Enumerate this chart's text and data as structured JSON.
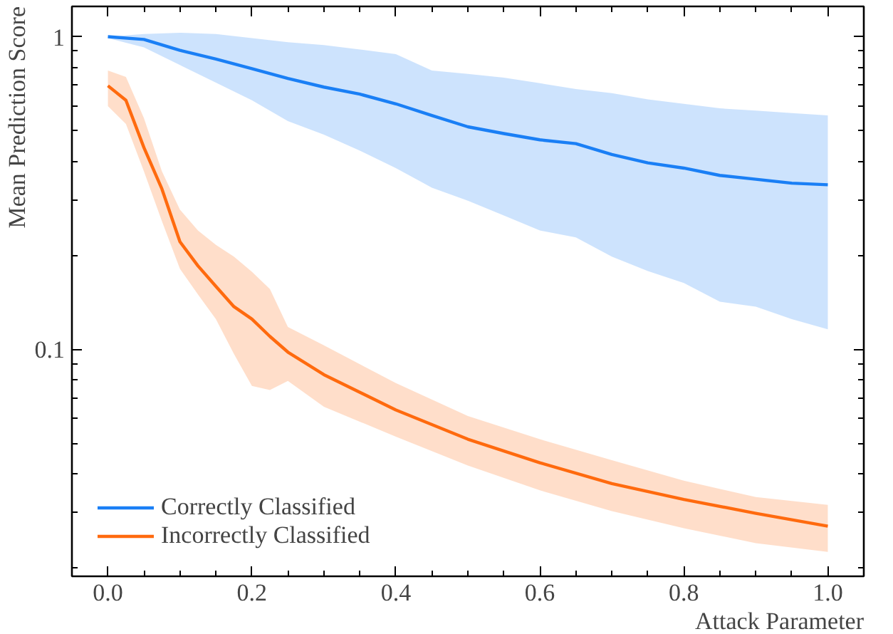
{
  "chart_data": {
    "type": "line",
    "xlabel": "Attack Parameter",
    "ylabel": "Mean Prediction Score",
    "log": "y",
    "grid": false,
    "legend": "bottom left",
    "xlim": [
      -0.05,
      1.05
    ],
    "ylim": [
      0.0188,
      1.25
    ],
    "xticks": [
      {
        "value": 0,
        "label": "0.0"
      },
      {
        "value": 0.2,
        "label": "0.2"
      },
      {
        "value": 0.4,
        "label": "0.4"
      },
      {
        "value": 0.6,
        "label": "0.6"
      },
      {
        "value": 0.8,
        "label": "0.8"
      },
      {
        "value": 1,
        "label": "1.0"
      },
      {
        "value": 0.05,
        "label": null
      },
      {
        "value": 0.1,
        "label": null
      },
      {
        "value": 0.15,
        "label": null
      },
      {
        "value": 0.25,
        "label": null
      },
      {
        "value": 0.3,
        "label": null
      },
      {
        "value": 0.35,
        "label": null
      },
      {
        "value": 0.45,
        "label": null
      },
      {
        "value": 0.5,
        "label": null
      },
      {
        "value": 0.55,
        "label": null
      },
      {
        "value": 0.65,
        "label": null
      },
      {
        "value": 0.7,
        "label": null
      },
      {
        "value": 0.75,
        "label": null
      },
      {
        "value": 0.85,
        "label": null
      },
      {
        "value": 0.9,
        "label": null
      },
      {
        "value": 0.95,
        "label": null
      }
    ],
    "yticks": [
      0.1,
      1,
      {
        "value": 0.02,
        "label": null
      },
      {
        "value": 0.03,
        "label": null
      },
      {
        "value": 0.04,
        "label": null
      },
      {
        "value": 0.05,
        "label": null
      },
      {
        "value": 0.06,
        "label": null
      },
      {
        "value": 0.07,
        "label": null
      },
      {
        "value": 0.08,
        "label": null
      },
      {
        "value": 0.09,
        "label": null
      },
      {
        "value": 0.2,
        "label": null
      },
      {
        "value": 0.3,
        "label": null
      },
      {
        "value": 0.4,
        "label": null
      },
      {
        "value": 0.5,
        "label": null
      },
      {
        "value": 0.6,
        "label": null
      },
      {
        "value": 0.7,
        "label": null
      },
      {
        "value": 0.8,
        "label": null
      },
      {
        "value": 0.9,
        "label": null
      }
    ],
    "series": [
      {
        "name": "Correctly Classified",
        "color": "#1a7ff5",
        "x": [
          0,
          0.05,
          0.1,
          0.15,
          0.2,
          0.25,
          0.3,
          0.35,
          0.4,
          0.45,
          0.5,
          0.55,
          0.6,
          0.65,
          0.7,
          0.75,
          0.8,
          0.85,
          0.9,
          0.95,
          1.0
        ],
        "values": [
          1.0,
          0.98,
          0.905,
          0.848,
          0.79,
          0.735,
          0.69,
          0.655,
          0.61,
          0.56,
          0.515,
          0.49,
          0.468,
          0.455,
          0.42,
          0.395,
          0.38,
          0.36,
          0.35,
          0.34,
          0.336
        ],
        "upper": [
          1.0,
          1.02,
          1.03,
          1.02,
          0.99,
          0.96,
          0.94,
          0.91,
          0.88,
          0.78,
          0.76,
          0.74,
          0.71,
          0.68,
          0.66,
          0.63,
          0.61,
          0.59,
          0.58,
          0.57,
          0.56
        ],
        "lower": [
          0.99,
          0.925,
          0.812,
          0.713,
          0.626,
          0.537,
          0.486,
          0.432,
          0.38,
          0.329,
          0.299,
          0.268,
          0.24,
          0.228,
          0.198,
          0.178,
          0.163,
          0.142,
          0.137,
          0.125,
          0.116
        ]
      },
      {
        "name": "Incorrectly Classified",
        "color": "#ff6a0e",
        "x": [
          0,
          0.025,
          0.05,
          0.075,
          0.1,
          0.125,
          0.15,
          0.175,
          0.2,
          0.225,
          0.25,
          0.3,
          0.4,
          0.5,
          0.6,
          0.7,
          0.8,
          0.9,
          1.0
        ],
        "values": [
          0.697,
          0.626,
          0.442,
          0.326,
          0.221,
          0.185,
          0.159,
          0.137,
          0.125,
          0.11,
          0.098,
          0.083,
          0.064,
          0.0516,
          0.0434,
          0.0372,
          0.0331,
          0.0299,
          0.0272
        ],
        "upper": [
          0.78,
          0.744,
          0.549,
          0.371,
          0.28,
          0.24,
          0.216,
          0.198,
          0.177,
          0.156,
          0.118,
          0.103,
          0.078,
          0.0612,
          0.0516,
          0.0442,
          0.038,
          0.0337,
          0.0318
        ],
        "lower": [
          0.6,
          0.526,
          0.371,
          0.257,
          0.181,
          0.15,
          0.125,
          0.0967,
          0.0764,
          0.0741,
          0.0793,
          0.0655,
          0.0526,
          0.0425,
          0.0354,
          0.0304,
          0.0268,
          0.024,
          0.0225
        ]
      }
    ]
  }
}
